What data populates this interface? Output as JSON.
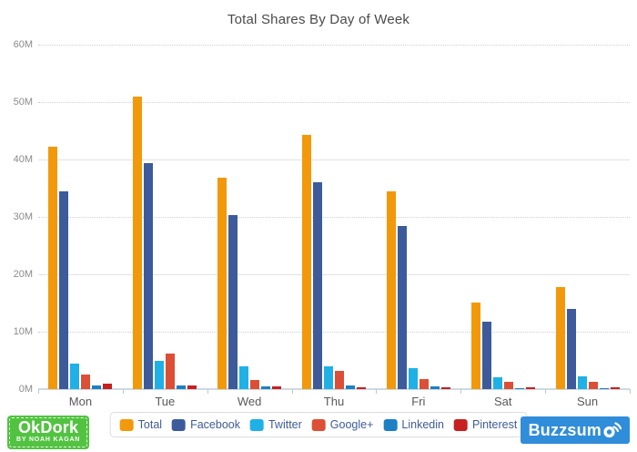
{
  "chart_data": {
    "type": "bar",
    "title": "Total Shares By Day of Week",
    "categories": [
      "Mon",
      "Tue",
      "Wed",
      "Thu",
      "Fri",
      "Sat",
      "Sun"
    ],
    "series": [
      {
        "name": "Total",
        "color": "#f2990b",
        "values": [
          42.3,
          51.0,
          36.8,
          44.3,
          34.5,
          15.1,
          17.8
        ]
      },
      {
        "name": "Facebook",
        "color": "#3d5b9b",
        "values": [
          34.5,
          39.3,
          30.3,
          36.1,
          28.4,
          11.8,
          14.0
        ]
      },
      {
        "name": "Twitter",
        "color": "#1fb0e6",
        "values": [
          4.5,
          5.0,
          3.9,
          4.0,
          3.6,
          2.0,
          2.2
        ]
      },
      {
        "name": "Google+",
        "color": "#dc4e35",
        "values": [
          2.6,
          6.2,
          1.6,
          3.1,
          1.8,
          1.2,
          1.3
        ]
      },
      {
        "name": "Linkedin",
        "color": "#1d7fc4",
        "values": [
          0.7,
          0.7,
          0.5,
          0.6,
          0.4,
          0.1,
          0.1
        ]
      },
      {
        "name": "Pinterest",
        "color": "#c62020",
        "values": [
          1.0,
          0.6,
          0.5,
          0.3,
          0.3,
          0.3,
          0.3
        ]
      }
    ],
    "y_axis": {
      "tick_labels": [
        "60M",
        "50M",
        "40M",
        "30M",
        "20M",
        "10M",
        "0M"
      ],
      "max": 60,
      "unit": "M"
    },
    "ylim": [
      0,
      60
    ],
    "grid": true,
    "legend_position": "bottom"
  },
  "logos": {
    "okdork": {
      "title": "OkDork",
      "subtitle": "BY NOAH KAGAN",
      "bg_color": "#52c341"
    },
    "buzzsumo": {
      "text": "Buzzsum",
      "full_name": "Buzzsumo",
      "bg_color": "#2f8dd9"
    }
  }
}
